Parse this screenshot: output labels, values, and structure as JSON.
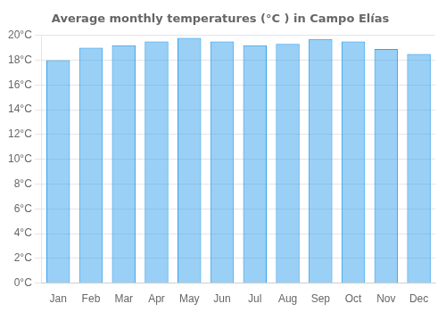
{
  "chart_data": {
    "type": "bar",
    "title": "Average monthly temperatures (°C ) in Campo Elías",
    "categories": [
      "Jan",
      "Feb",
      "Mar",
      "Apr",
      "May",
      "Jun",
      "Jul",
      "Aug",
      "Sep",
      "Oct",
      "Nov",
      "Dec"
    ],
    "values": [
      18.0,
      19.0,
      19.2,
      19.5,
      19.8,
      19.5,
      19.2,
      19.3,
      19.7,
      19.5,
      18.9,
      18.5
    ],
    "ylim": [
      0,
      20
    ],
    "yticks": [
      {
        "value": 0,
        "label": "0°C"
      },
      {
        "value": 2,
        "label": "2°C"
      },
      {
        "value": 4,
        "label": "4°C"
      },
      {
        "value": 6,
        "label": "6°C"
      },
      {
        "value": 8,
        "label": "8°C"
      },
      {
        "value": 10,
        "label": "10°C"
      },
      {
        "value": 12,
        "label": "12°C"
      },
      {
        "value": 14,
        "label": "14°C"
      },
      {
        "value": 16,
        "label": "16°C"
      },
      {
        "value": 18,
        "label": "18°C"
      },
      {
        "value": 20,
        "label": "20°C"
      }
    ],
    "grid": true
  }
}
